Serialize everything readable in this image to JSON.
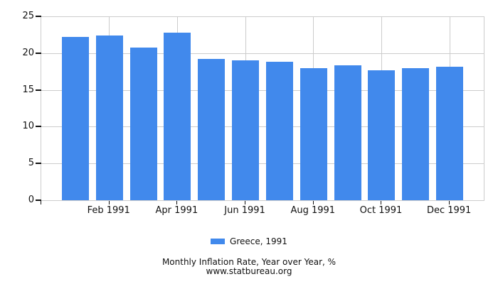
{
  "chart_data": {
    "type": "bar",
    "title": "Monthly Inflation Rate, Year over Year, %",
    "subtitle": "www.statbureau.org",
    "categories": [
      "Jan 1991",
      "Feb 1991",
      "Mar 1991",
      "Apr 1991",
      "May 1991",
      "Jun 1991",
      "Jul 1991",
      "Aug 1991",
      "Sep 1991",
      "Oct 1991",
      "Nov 1991",
      "Dec 1991"
    ],
    "x_tick_labels": [
      "Feb 1991",
      "Apr 1991",
      "Jun 1991",
      "Aug 1991",
      "Oct 1991",
      "Dec 1991"
    ],
    "series": [
      {
        "name": "Greece, 1991",
        "values": [
          22.2,
          22.4,
          20.8,
          22.8,
          19.2,
          19.0,
          18.8,
          18.0,
          18.3,
          17.7,
          18.0,
          18.1
        ]
      }
    ],
    "ylim": [
      0,
      25
    ],
    "y_ticks": [
      0,
      5,
      10,
      15,
      20,
      25
    ],
    "grid": true,
    "legend_position": "bottom",
    "bar_color": "#4189ec",
    "grid_color": "#cccccc",
    "axis_tick_color": "#111111",
    "text_color": "#111111",
    "background": "#ffffff"
  }
}
